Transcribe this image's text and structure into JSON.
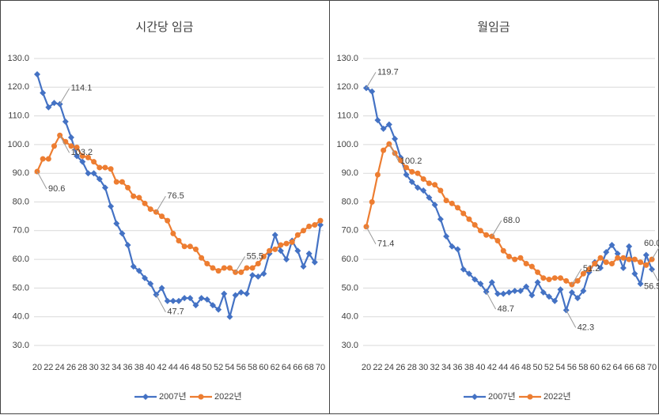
{
  "chart_data": [
    {
      "type": "line",
      "title": "시간당 임금",
      "x": [
        20,
        21,
        22,
        23,
        24,
        25,
        26,
        27,
        28,
        29,
        30,
        31,
        32,
        33,
        34,
        35,
        36,
        37,
        38,
        39,
        40,
        41,
        42,
        43,
        44,
        45,
        46,
        47,
        48,
        49,
        50,
        51,
        52,
        53,
        54,
        55,
        56,
        57,
        58,
        59,
        60,
        61,
        62,
        63,
        64,
        65,
        66,
        67,
        68,
        69,
        70
      ],
      "xlim": [
        20,
        70
      ],
      "xticks": [
        20,
        22,
        24,
        26,
        28,
        30,
        32,
        34,
        36,
        38,
        40,
        42,
        44,
        46,
        48,
        50,
        52,
        54,
        56,
        58,
        60,
        62,
        64,
        66,
        68,
        70
      ],
      "ylim": [
        30,
        130
      ],
      "yticks": [
        {
          "value": 30,
          "label": "30.0"
        },
        {
          "value": 40,
          "label": "40.0"
        },
        {
          "value": 50,
          "label": "50.0"
        },
        {
          "value": 60,
          "label": "60.0"
        },
        {
          "value": 70,
          "label": "70.0"
        },
        {
          "value": 80,
          "label": "80.0"
        },
        {
          "value": 90,
          "label": "90.0"
        },
        {
          "value": 100,
          "label": "100.0"
        },
        {
          "value": 110,
          "label": "110.0"
        },
        {
          "value": 120,
          "label": "120.0"
        },
        {
          "value": 130,
          "label": "130.0"
        }
      ],
      "grid": true,
      "legend": "bottom",
      "series": [
        {
          "name": "2007년",
          "color": "#4472c4",
          "values": [
            124.5,
            118,
            113,
            114.5,
            114.1,
            108,
            102.5,
            96,
            94,
            90,
            90,
            88,
            85,
            78.5,
            72.5,
            69,
            65,
            57.5,
            56,
            53.5,
            51.5,
            47.7,
            50,
            45.5,
            45.5,
            45.5,
            46.5,
            46.5,
            44,
            46.5,
            46,
            44,
            42.5,
            48,
            40,
            47.5,
            48.5,
            48,
            54.5,
            54,
            55,
            62,
            68.5,
            63,
            60,
            66.5,
            63,
            57.5,
            62,
            59,
            72
          ],
          "value_labels": [
            null,
            null,
            null,
            null,
            "114.1",
            null,
            null,
            null,
            null,
            null,
            null,
            null,
            null,
            null,
            null,
            null,
            null,
            null,
            null,
            null,
            null,
            "47.7",
            null,
            null,
            null,
            null,
            null,
            null,
            null,
            null,
            null,
            null,
            null,
            null,
            null,
            null,
            null,
            null,
            null,
            null,
            null,
            null,
            null,
            null,
            null,
            null,
            null,
            null,
            null,
            null,
            null
          ]
        },
        {
          "name": "2022년",
          "color": "#ed7d31",
          "values": [
            90.6,
            95,
            95,
            99.5,
            103.2,
            101,
            99.5,
            99,
            96,
            95.5,
            94,
            92,
            92,
            91.5,
            87,
            87,
            85,
            82,
            81.5,
            79.5,
            77.5,
            76.5,
            75,
            73.5,
            69,
            66.5,
            64.5,
            64.5,
            63.5,
            60.5,
            58.5,
            57,
            56,
            57,
            57,
            55.5,
            55.5,
            57,
            57,
            58.5,
            61,
            63,
            63.5,
            65,
            65.5,
            66,
            68.5,
            70,
            71.5,
            72,
            73.5
          ],
          "value_labels": [
            "90.6",
            null,
            null,
            null,
            "103.2",
            null,
            null,
            null,
            null,
            null,
            null,
            null,
            null,
            null,
            null,
            null,
            null,
            null,
            null,
            null,
            null,
            "76.5",
            null,
            null,
            null,
            null,
            null,
            null,
            null,
            null,
            null,
            null,
            null,
            null,
            null,
            "55.5",
            null,
            null,
            null,
            null,
            null,
            null,
            null,
            null,
            null,
            null,
            null,
            null,
            null,
            null,
            null
          ]
        }
      ]
    },
    {
      "type": "line",
      "title": "월임금",
      "x": [
        20,
        21,
        22,
        23,
        24,
        25,
        26,
        27,
        28,
        29,
        30,
        31,
        32,
        33,
        34,
        35,
        36,
        37,
        38,
        39,
        40,
        41,
        42,
        43,
        44,
        45,
        46,
        47,
        48,
        49,
        50,
        51,
        52,
        53,
        54,
        55,
        56,
        57,
        58,
        59,
        60,
        61,
        62,
        63,
        64,
        65,
        66,
        67,
        68,
        69,
        70
      ],
      "xlim": [
        20,
        70
      ],
      "xticks": [
        20,
        22,
        24,
        26,
        28,
        30,
        32,
        34,
        36,
        38,
        40,
        42,
        44,
        46,
        48,
        50,
        52,
        54,
        56,
        58,
        60,
        62,
        64,
        66,
        68,
        70
      ],
      "ylim": [
        30,
        130
      ],
      "yticks": [
        {
          "value": 30,
          "label": "30.0"
        },
        {
          "value": 40,
          "label": "40.0"
        },
        {
          "value": 50,
          "label": "50.0"
        },
        {
          "value": 60,
          "label": "60.0"
        },
        {
          "value": 70,
          "label": "70.0"
        },
        {
          "value": 80,
          "label": "80.0"
        },
        {
          "value": 90,
          "label": "90.0"
        },
        {
          "value": 100,
          "label": "100.0"
        },
        {
          "value": 110,
          "label": "110.0"
        },
        {
          "value": 120,
          "label": "120.0"
        },
        {
          "value": 130,
          "label": "130.0"
        }
      ],
      "grid": true,
      "legend": "bottom",
      "series": [
        {
          "name": "2007년",
          "color": "#4472c4",
          "values": [
            119.7,
            118.5,
            108.5,
            105.5,
            107,
            102,
            95.5,
            89.5,
            87,
            85,
            84,
            81.5,
            79,
            74,
            68,
            64.5,
            63.5,
            56.5,
            55,
            53,
            51.5,
            48.7,
            52,
            48,
            48,
            48.5,
            49,
            49,
            50.5,
            47.5,
            52,
            48.5,
            47,
            45.5,
            49.5,
            42.3,
            48.5,
            46.5,
            49,
            55.5,
            59,
            57,
            62.5,
            65,
            62,
            57,
            64.5,
            55,
            51.5,
            61.5,
            56.5
          ],
          "value_labels": [
            "119.7",
            null,
            null,
            null,
            null,
            null,
            null,
            null,
            null,
            null,
            null,
            null,
            null,
            null,
            null,
            null,
            null,
            null,
            null,
            null,
            null,
            "48.7",
            null,
            null,
            null,
            null,
            null,
            null,
            null,
            null,
            null,
            null,
            null,
            null,
            null,
            "42.3",
            null,
            null,
            null,
            null,
            null,
            null,
            null,
            null,
            null,
            null,
            null,
            null,
            null,
            null,
            "56.5"
          ]
        },
        {
          "name": "2022년",
          "color": "#ed7d31",
          "values": [
            71.4,
            80,
            89.5,
            98,
            100.2,
            97,
            94.5,
            92,
            90.5,
            90,
            88,
            86.5,
            86,
            84,
            80.5,
            79.5,
            78,
            76,
            74,
            72,
            70,
            68.5,
            68,
            66.5,
            63,
            61,
            60,
            60.5,
            58.5,
            57.5,
            55.5,
            53.5,
            53,
            53.5,
            53.5,
            52.5,
            51.2,
            52.5,
            55,
            56.5,
            58.5,
            60.5,
            59,
            58.5,
            60.5,
            60.5,
            60,
            60,
            59,
            58,
            60
          ],
          "value_labels": [
            "71.4",
            null,
            null,
            null,
            "100.2",
            null,
            null,
            null,
            null,
            null,
            null,
            null,
            null,
            null,
            null,
            null,
            null,
            null,
            null,
            null,
            null,
            null,
            "68.0",
            null,
            null,
            null,
            null,
            null,
            null,
            null,
            null,
            null,
            null,
            null,
            null,
            null,
            "51.2",
            null,
            null,
            null,
            null,
            null,
            null,
            null,
            null,
            null,
            null,
            null,
            null,
            null,
            "60.0"
          ]
        }
      ]
    }
  ]
}
